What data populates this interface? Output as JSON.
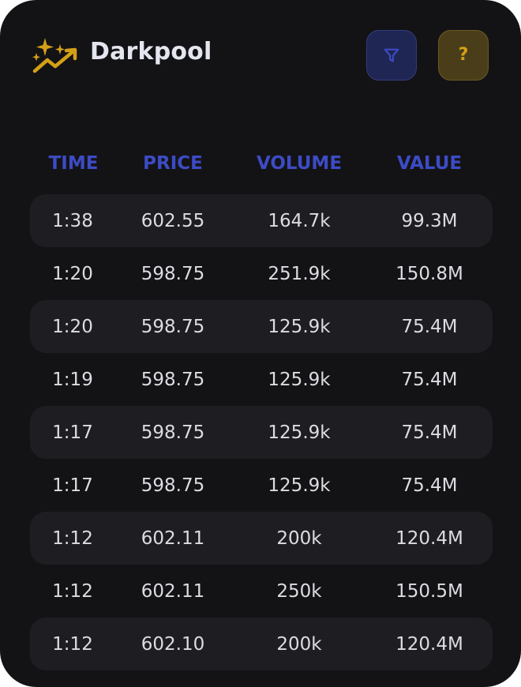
{
  "app": {
    "title": "Darkpool",
    "logo_icon": "sparkle-trend-icon",
    "accent_color": "#d4a017"
  },
  "buttons": {
    "filter": {
      "icon": "filter-icon",
      "color": "#3d4bc4"
    },
    "help": {
      "label": "?",
      "icon": "help-icon",
      "color": "#d4a017"
    }
  },
  "table": {
    "headers": {
      "time": "TIME",
      "price": "PRICE",
      "volume": "VOLUME",
      "value": "VALUE"
    },
    "header_color": "#3d4bc4",
    "rows": [
      {
        "time": "1:38",
        "price": "602.55",
        "volume": "164.7k",
        "value": "99.3M"
      },
      {
        "time": "1:20",
        "price": "598.75",
        "volume": "251.9k",
        "value": "150.8M"
      },
      {
        "time": "1:20",
        "price": "598.75",
        "volume": "125.9k",
        "value": "75.4M"
      },
      {
        "time": "1:19",
        "price": "598.75",
        "volume": "125.9k",
        "value": "75.4M"
      },
      {
        "time": "1:17",
        "price": "598.75",
        "volume": "125.9k",
        "value": "75.4M"
      },
      {
        "time": "1:17",
        "price": "598.75",
        "volume": "125.9k",
        "value": "75.4M"
      },
      {
        "time": "1:12",
        "price": "602.11",
        "volume": "200k",
        "value": "120.4M"
      },
      {
        "time": "1:12",
        "price": "602.11",
        "volume": "250k",
        "value": "150.5M"
      },
      {
        "time": "1:12",
        "price": "602.10",
        "volume": "200k",
        "value": "120.4M"
      }
    ]
  }
}
